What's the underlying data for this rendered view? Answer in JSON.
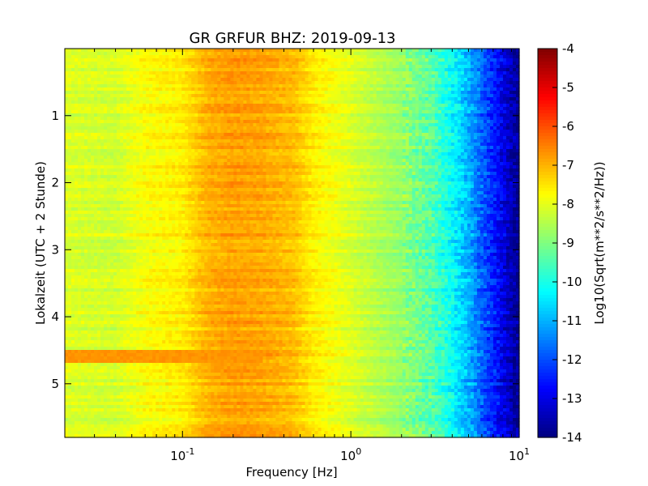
{
  "chart_data": {
    "type": "heatmap",
    "title": "GR GRFUR BHZ: 2019-09-13",
    "xlabel": "Frequency [Hz]",
    "ylabel": "Lokalzeit (UTC + 2 Stunde)",
    "xscale": "log",
    "xlim": [
      0.02,
      10
    ],
    "xticks": [
      {
        "value": 0.1,
        "base": "10",
        "exp": "-1"
      },
      {
        "value": 1,
        "base": "10",
        "exp": "0"
      },
      {
        "value": 10,
        "base": "10",
        "exp": "1"
      }
    ],
    "ylim": [
      0,
      5.8
    ],
    "yinverted": true,
    "yticks": [
      {
        "value": 1,
        "label": "1"
      },
      {
        "value": 2,
        "label": "2"
      },
      {
        "value": 3,
        "label": "3"
      },
      {
        "value": 4,
        "label": "4"
      },
      {
        "value": 5,
        "label": "5"
      }
    ],
    "colorbar": {
      "label": "Log10(Sqrt(m**2/s**2/Hz))",
      "range": [
        -14,
        -4
      ],
      "ticks": [
        "-4",
        "-5",
        "-6",
        "-7",
        "-8",
        "-9",
        "-10",
        "-11",
        "-12",
        "-13",
        "-14"
      ],
      "colormap": "jet"
    },
    "z_profile_vs_frequency": {
      "frequency_hz": [
        0.02,
        0.04,
        0.06,
        0.1,
        0.14,
        0.2,
        0.3,
        0.45,
        0.6,
        1.0,
        2.0,
        3.0,
        4.0,
        5.0,
        6.0,
        7.0,
        8.0,
        9.0,
        10.0
      ],
      "log10_amplitude": [
        -8.1,
        -8.2,
        -7.8,
        -7.6,
        -7.0,
        -6.8,
        -6.9,
        -7.1,
        -7.6,
        -8.1,
        -8.8,
        -9.4,
        -10.2,
        -11.0,
        -11.8,
        -12.4,
        -13.0,
        -13.5,
        -13.8
      ]
    },
    "anomaly": {
      "time_hours": 4.6,
      "frequency_range_hz": [
        0.02,
        0.3
      ],
      "log10_amplitude": -6.7
    }
  }
}
